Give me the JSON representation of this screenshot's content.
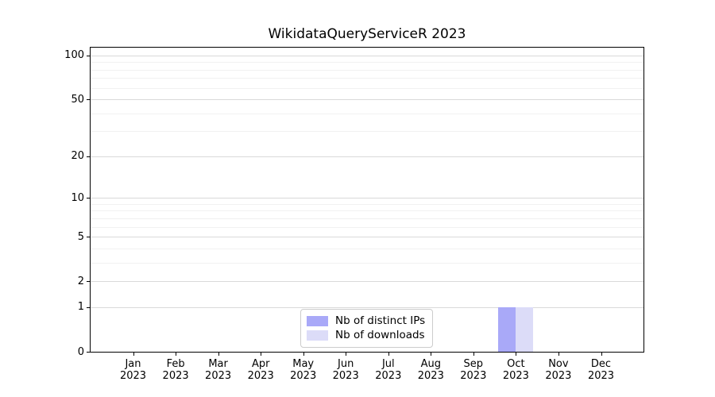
{
  "chart_data": {
    "type": "bar",
    "title": "WikidataQueryServiceR 2023",
    "categories": [
      "Jan",
      "Feb",
      "Mar",
      "Apr",
      "May",
      "Jun",
      "Jul",
      "Aug",
      "Sep",
      "Oct",
      "Nov",
      "Dec"
    ],
    "year_label": "2023",
    "series": [
      {
        "name": "Nb of distinct IPs",
        "color": "#a9a9f8",
        "values": [
          0,
          0,
          0,
          0,
          0,
          0,
          0,
          0,
          0,
          1,
          0,
          0
        ]
      },
      {
        "name": "Nb of downloads",
        "color": "#dcdcf8",
        "values": [
          0,
          0,
          0,
          0,
          0,
          0,
          0,
          0,
          0,
          1,
          0,
          0
        ]
      }
    ],
    "y_scale": "log1p",
    "ylim": [
      0,
      113
    ],
    "y_major_ticks": [
      0,
      1,
      2,
      5,
      10,
      20,
      50,
      100
    ],
    "y_minor_ticks": [
      3,
      4,
      6,
      7,
      8,
      9,
      30,
      40,
      60,
      70,
      80,
      90
    ],
    "grid": true,
    "legend_position": "lower-center",
    "colors": {
      "grid_major": "#d9d9d9",
      "grid_minor": "#f1f1f1",
      "axis": "#000000",
      "legend_border": "#cccccc",
      "background": "#ffffff",
      "text": "#000000"
    }
  }
}
